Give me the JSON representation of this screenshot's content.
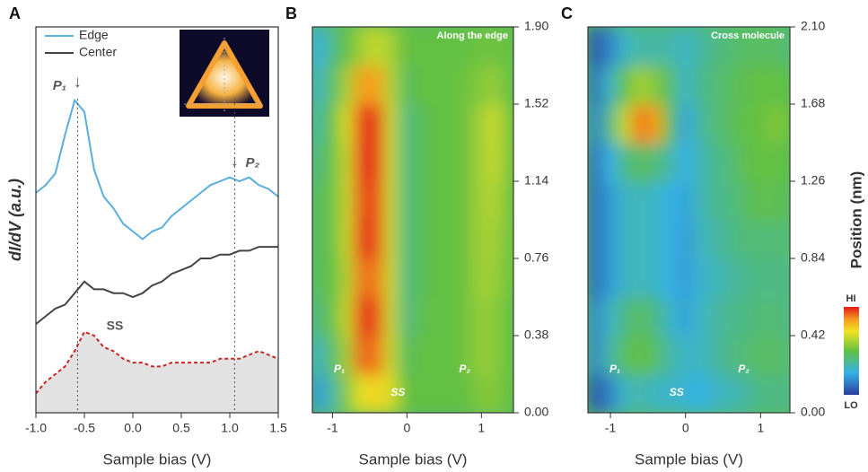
{
  "chart_data": [
    {
      "type": "line",
      "panel": "A",
      "ylabel": "dI/dV (a.u.)",
      "xlabel": "Sample bias (V)",
      "xlim": [
        -1,
        1.5
      ],
      "xticks": [
        {
          "value": -1,
          "label": "-1.0"
        },
        -0.5,
        {
          "value": 0,
          "label": "0.0"
        },
        0.5,
        {
          "value": 1,
          "label": "1.0"
        },
        1.5
      ],
      "ylim": [
        0,
        10
      ],
      "x": [
        -1,
        -0.9,
        -0.8,
        -0.7,
        -0.6,
        -0.5,
        -0.4,
        -0.3,
        -0.2,
        -0.1,
        0,
        0.1,
        0.2,
        0.3,
        0.4,
        0.5,
        0.6,
        0.7,
        0.8,
        0.9,
        1,
        1.1,
        1.2,
        1.3,
        1.4,
        1.5
      ],
      "series": [
        {
          "name": "Edge",
          "color": "#5aaedc",
          "values": [
            5.7,
            5.9,
            6.2,
            7.2,
            8.1,
            7.8,
            6.3,
            5.6,
            5.3,
            4.9,
            4.7,
            4.5,
            4.7,
            4.8,
            5.1,
            5.3,
            5.5,
            5.7,
            5.9,
            6.0,
            6.1,
            6.0,
            6.1,
            5.9,
            5.8,
            5.6
          ]
        },
        {
          "name": "Center",
          "color": "#444444",
          "values": [
            2.3,
            2.5,
            2.7,
            2.8,
            3.1,
            3.4,
            3.2,
            3.2,
            3.1,
            3.1,
            3.0,
            3.1,
            3.3,
            3.4,
            3.6,
            3.7,
            3.8,
            4.0,
            4.0,
            4.1,
            4.1,
            4.2,
            4.2,
            4.3,
            4.3,
            4.3
          ]
        },
        {
          "color": "#cc2222",
          "dashed": true,
          "fill": "#e2e2e2",
          "values": [
            0.5,
            0.8,
            1.0,
            1.2,
            1.6,
            2.1,
            2.0,
            1.7,
            1.6,
            1.4,
            1.3,
            1.3,
            1.2,
            1.2,
            1.3,
            1.3,
            1.3,
            1.3,
            1.3,
            1.4,
            1.4,
            1.4,
            1.5,
            1.6,
            1.5,
            1.4
          ]
        }
      ],
      "markers": [
        {
          "text": "P₁",
          "x": -0.57
        },
        {
          "text": "P₂",
          "x": 1.05
        }
      ],
      "annotation": "SS"
    },
    {
      "type": "heatmap",
      "panel": "B",
      "title": "Along the edge",
      "xlabel": "Sample bias (V)",
      "xlim": [
        -1.27,
        1.43
      ],
      "xticks": [
        -1,
        0,
        1
      ],
      "ylim": [
        0,
        1.9
      ],
      "yticks": [
        {
          "value": 0,
          "label": "0.00"
        },
        {
          "value": 0.38,
          "label": "0.38"
        },
        {
          "value": 0.76,
          "label": "0.76"
        },
        {
          "value": 1.14,
          "label": "1.14"
        },
        {
          "value": 1.52,
          "label": "1.52"
        },
        {
          "value": 1.9,
          "label": "1.90"
        }
      ],
      "zlim": [
        0,
        1
      ],
      "x": [
        -1.2,
        -1.0,
        -0.8,
        -0.6,
        -0.4,
        -0.2,
        0,
        0.2,
        0.4,
        0.6,
        0.8,
        1.0,
        1.2,
        1.4
      ],
      "y": [
        0.095,
        0.285,
        0.475,
        0.665,
        0.855,
        1.045,
        1.235,
        1.425,
        1.615,
        1.805
      ],
      "z": [
        [
          0.2,
          0.35,
          0.55,
          0.7,
          0.75,
          0.68,
          0.5,
          0.5,
          0.5,
          0.5,
          0.5,
          0.55,
          0.55,
          0.5
        ],
        [
          0.3,
          0.45,
          0.6,
          0.92,
          0.9,
          0.65,
          0.45,
          0.5,
          0.5,
          0.5,
          0.52,
          0.58,
          0.56,
          0.5
        ],
        [
          0.4,
          0.5,
          0.65,
          0.97,
          0.95,
          0.65,
          0.4,
          0.48,
          0.5,
          0.5,
          0.52,
          0.58,
          0.56,
          0.5
        ],
        [
          0.45,
          0.5,
          0.62,
          0.9,
          0.9,
          0.65,
          0.4,
          0.47,
          0.5,
          0.5,
          0.52,
          0.6,
          0.58,
          0.52
        ],
        [
          0.45,
          0.5,
          0.65,
          0.97,
          0.95,
          0.65,
          0.4,
          0.47,
          0.5,
          0.5,
          0.52,
          0.6,
          0.6,
          0.52
        ],
        [
          0.45,
          0.5,
          0.65,
          0.95,
          0.95,
          0.65,
          0.4,
          0.47,
          0.5,
          0.5,
          0.52,
          0.6,
          0.62,
          0.52
        ],
        [
          0.4,
          0.5,
          0.65,
          0.97,
          0.97,
          0.65,
          0.4,
          0.47,
          0.5,
          0.5,
          0.52,
          0.6,
          0.65,
          0.52
        ],
        [
          0.35,
          0.5,
          0.68,
          0.97,
          0.97,
          0.65,
          0.4,
          0.47,
          0.5,
          0.5,
          0.52,
          0.6,
          0.66,
          0.52
        ],
        [
          0.3,
          0.45,
          0.6,
          0.85,
          0.85,
          0.62,
          0.45,
          0.5,
          0.5,
          0.5,
          0.52,
          0.55,
          0.58,
          0.5
        ],
        [
          0.25,
          0.4,
          0.5,
          0.6,
          0.65,
          0.6,
          0.5,
          0.5,
          0.5,
          0.5,
          0.5,
          0.52,
          0.52,
          0.5
        ]
      ],
      "annotations": [
        "P₁",
        "P₂",
        "SS"
      ]
    },
    {
      "type": "heatmap",
      "panel": "C",
      "title": "Cross molecule",
      "xlabel": "Sample bias (V)",
      "ylabel": "Position (nm)",
      "xlim": [
        -1.3,
        1.39
      ],
      "xticks": [
        -1,
        0,
        1
      ],
      "ylim": [
        0,
        2.1
      ],
      "yticks": [
        {
          "value": 0,
          "label": "0.00"
        },
        0.42,
        0.84,
        1.26,
        1.68,
        {
          "value": 2.1,
          "label": "2.10"
        }
      ],
      "zlim": [
        0,
        1
      ],
      "colorbar": {
        "high": "HI",
        "low": "LO"
      },
      "x": [
        -1.2,
        -1.0,
        -0.8,
        -0.6,
        -0.4,
        -0.2,
        0,
        0.2,
        0.4,
        0.6,
        0.8,
        1.0,
        1.2,
        1.4
      ],
      "y": [
        0.105,
        0.315,
        0.525,
        0.735,
        0.945,
        1.155,
        1.365,
        1.575,
        1.785,
        1.995
      ],
      "z": [
        [
          0.05,
          0.15,
          0.3,
          0.35,
          0.3,
          0.3,
          0.28,
          0.25,
          0.3,
          0.32,
          0.35,
          0.4,
          0.4,
          0.4
        ],
        [
          0.15,
          0.35,
          0.45,
          0.5,
          0.45,
          0.35,
          0.3,
          0.3,
          0.35,
          0.4,
          0.42,
          0.45,
          0.45,
          0.42
        ],
        [
          0.15,
          0.3,
          0.4,
          0.45,
          0.4,
          0.3,
          0.22,
          0.3,
          0.35,
          0.38,
          0.4,
          0.42,
          0.42,
          0.4
        ],
        [
          0.1,
          0.2,
          0.3,
          0.32,
          0.3,
          0.25,
          0.2,
          0.28,
          0.32,
          0.35,
          0.38,
          0.4,
          0.4,
          0.4
        ],
        [
          0.1,
          0.2,
          0.3,
          0.32,
          0.3,
          0.25,
          0.2,
          0.3,
          0.35,
          0.38,
          0.42,
          0.42,
          0.42,
          0.42
        ],
        [
          0.1,
          0.2,
          0.3,
          0.32,
          0.3,
          0.25,
          0.22,
          0.32,
          0.38,
          0.4,
          0.45,
          0.48,
          0.48,
          0.45
        ],
        [
          0.1,
          0.25,
          0.4,
          0.45,
          0.42,
          0.35,
          0.25,
          0.32,
          0.38,
          0.42,
          0.48,
          0.5,
          0.5,
          0.48
        ],
        [
          0.15,
          0.4,
          0.65,
          0.9,
          0.85,
          0.5,
          0.22,
          0.35,
          0.42,
          0.45,
          0.5,
          0.5,
          0.55,
          0.5
        ],
        [
          0.1,
          0.3,
          0.5,
          0.6,
          0.55,
          0.45,
          0.3,
          0.38,
          0.42,
          0.45,
          0.48,
          0.5,
          0.5,
          0.48
        ],
        [
          0.05,
          0.15,
          0.3,
          0.35,
          0.35,
          0.35,
          0.3,
          0.35,
          0.4,
          0.42,
          0.45,
          0.45,
          0.45,
          0.42
        ]
      ],
      "annotations": [
        "P₁",
        "P₂",
        "SS"
      ]
    }
  ]
}
